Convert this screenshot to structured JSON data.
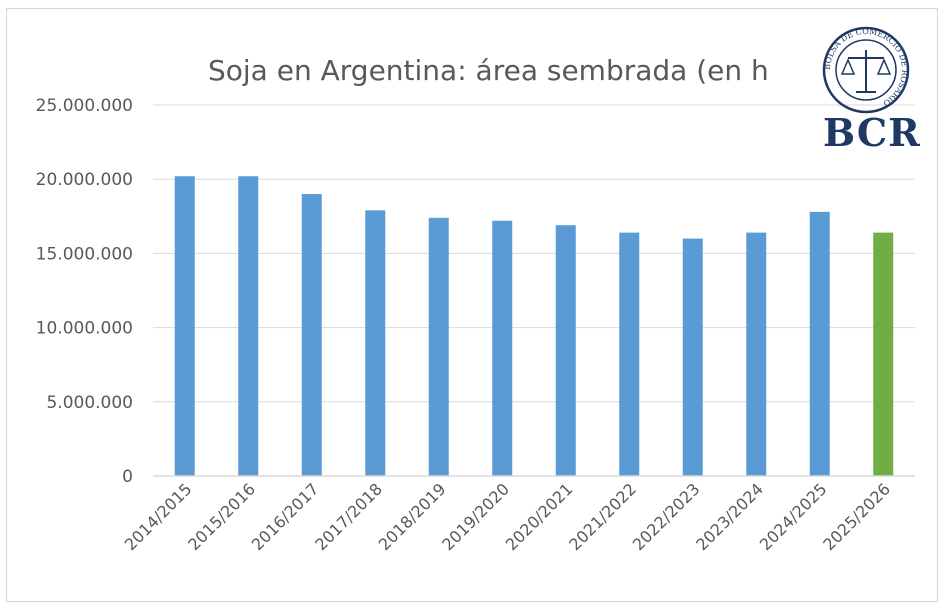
{
  "logo": {
    "text": "BCR",
    "seal_text": "BOLSA DE COMERCIO DE ROSARIO"
  },
  "colors": {
    "bar": "#5b9bd5",
    "highlight": "#70ad47",
    "grid": "#d9d9d9",
    "text": "#595959",
    "logo": "#1f3864"
  },
  "chart_data": {
    "type": "bar",
    "title": "Soja en Argentina: área sembrada (en h",
    "xlabel": "",
    "ylabel": "",
    "ylim": [
      0,
      25000000
    ],
    "yticks": [
      "0",
      "5.000.000",
      "10.000.000",
      "15.000.000",
      "20.000.000",
      "25.000.000"
    ],
    "grid": true,
    "legend": "none",
    "categories": [
      "2014/2015",
      "2015/2016",
      "2016/2017",
      "2017/2018",
      "2018/2019",
      "2019/2020",
      "2020/2021",
      "2021/2022",
      "2022/2023",
      "2023/2024",
      "2024/2025",
      "2025/2026"
    ],
    "values": [
      20200000,
      20200000,
      19000000,
      17900000,
      17400000,
      17200000,
      16900000,
      16400000,
      16000000,
      16400000,
      17800000,
      16400000
    ],
    "highlighted_category": "2025/2026"
  }
}
